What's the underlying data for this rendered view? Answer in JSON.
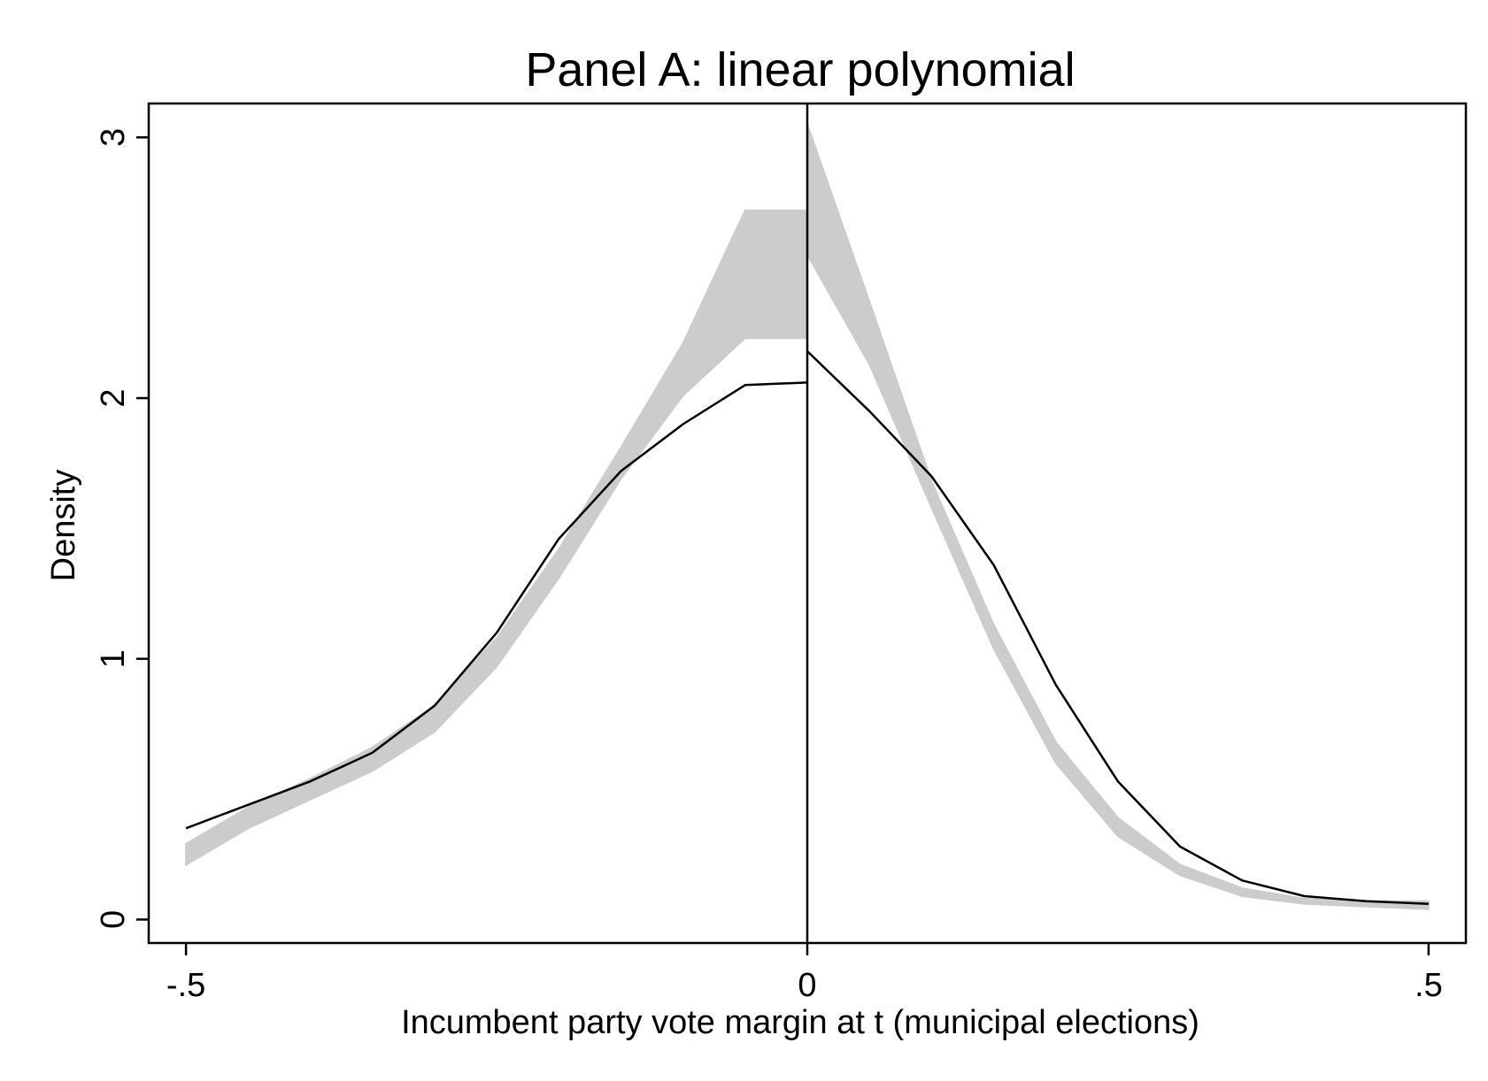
{
  "chart_data": {
    "type": "line",
    "title": "Panel A: linear polynomial",
    "xlabel": "Incumbent party vote margin at t (municipal elections)",
    "ylabel": "Density",
    "xlim": [
      -0.53,
      0.53
    ],
    "ylim": [
      -0.09,
      3.13
    ],
    "x_ticks": [
      -0.5,
      0,
      0.5
    ],
    "x_tick_labels": [
      "-.5",
      "0",
      ".5"
    ],
    "y_ticks": [
      0,
      1,
      2,
      3
    ],
    "y_tick_labels": [
      "0",
      "1",
      "2",
      "3"
    ],
    "cutoff_x": 0,
    "grid": false,
    "legend": "none",
    "colors": {
      "band": "#cccccc",
      "line": "#000000",
      "frame": "#000000"
    },
    "series": [
      {
        "role": "density",
        "segment": "left",
        "x": [
          -0.5,
          -0.45,
          -0.4,
          -0.35,
          -0.3,
          -0.25,
          -0.2,
          -0.15,
          -0.1,
          -0.05,
          0
        ],
        "values": [
          0.35,
          0.44,
          0.53,
          0.64,
          0.82,
          1.1,
          1.46,
          1.72,
          1.9,
          2.05,
          2.06
        ]
      },
      {
        "role": "density",
        "segment": "right",
        "x": [
          0,
          0.05,
          0.1,
          0.15,
          0.2,
          0.25,
          0.3,
          0.35,
          0.4,
          0.45,
          0.5
        ],
        "values": [
          2.18,
          1.95,
          1.7,
          1.36,
          0.9,
          0.53,
          0.28,
          0.15,
          0.09,
          0.07,
          0.06
        ]
      },
      {
        "role": "confidence-band",
        "segment": "left",
        "x": [
          -0.5,
          -0.45,
          -0.4,
          -0.35,
          -0.3,
          -0.25,
          -0.2,
          -0.15,
          -0.1,
          -0.05,
          0
        ],
        "lower": [
          0.21,
          0.35,
          0.46,
          0.57,
          0.72,
          0.97,
          1.31,
          1.69,
          2.01,
          2.23,
          2.23
        ],
        "upper": [
          0.29,
          0.43,
          0.54,
          0.66,
          0.82,
          1.08,
          1.42,
          1.81,
          2.21,
          2.72,
          2.72
        ]
      },
      {
        "role": "confidence-band",
        "segment": "right",
        "x": [
          0,
          0.05,
          0.1,
          0.15,
          0.2,
          0.25,
          0.3,
          0.35,
          0.4,
          0.45,
          0.5
        ],
        "lower": [
          2.55,
          2.13,
          1.58,
          1.04,
          0.6,
          0.32,
          0.17,
          0.09,
          0.06,
          0.05,
          0.04
        ],
        "upper": [
          3.05,
          2.37,
          1.68,
          1.13,
          0.68,
          0.39,
          0.21,
          0.12,
          0.08,
          0.07,
          0.07
        ]
      }
    ]
  }
}
